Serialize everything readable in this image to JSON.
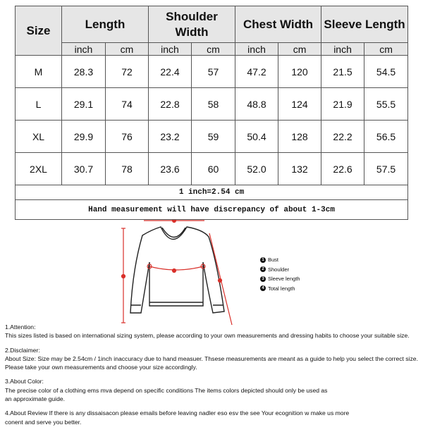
{
  "table": {
    "headers": [
      "Size",
      "Length",
      "Shoulder Width",
      "Chest Width",
      "Sleeve Length"
    ],
    "units": [
      "inch",
      "cm",
      "inch",
      "cm",
      "inch",
      "cm",
      "inch",
      "cm"
    ],
    "rows": [
      {
        "size": "M",
        "values": [
          "28.3",
          "72",
          "22.4",
          "57",
          "47.2",
          "120",
          "21.5",
          "54.5"
        ]
      },
      {
        "size": "L",
        "values": [
          "29.1",
          "74",
          "22.8",
          "58",
          "48.8",
          "124",
          "21.9",
          "55.5"
        ]
      },
      {
        "size": "XL",
        "values": [
          "29.9",
          "76",
          "23.2",
          "59",
          "50.4",
          "128",
          "22.2",
          "56.5"
        ]
      },
      {
        "size": "2XL",
        "values": [
          "30.7",
          "78",
          "23.6",
          "60",
          "52.0",
          "132",
          "22.6",
          "57.5"
        ]
      }
    ],
    "conversion_note": "1 inch=2.54 cm",
    "discrepancy_note": "Hand measurement will have discrepancy of about 1-3cm"
  },
  "diagram": {
    "legend": [
      {
        "num": "1",
        "label": "Bust"
      },
      {
        "num": "2",
        "label": "Shoulder"
      },
      {
        "num": "3",
        "label": "Sleeve length"
      },
      {
        "num": "4",
        "label": "Total length"
      }
    ],
    "measure_color": "#d9302a"
  },
  "notes": [
    {
      "title": "1.Attention:",
      "lines": [
        "This sizes listed is based on international sizing system, please according to your own measurements and dressing habits to choose your suitable size."
      ]
    },
    {
      "title": "2.Disclaimer:",
      "lines": [
        "About Size: Size may be 2.54cm / 1inch inaccuracy due to hand measuer. Thsese measurements are meant as a guide to help you select the correct size.",
        "Please take your own measurements and choose your size accordingly."
      ]
    },
    {
      "title": "3.About Color:",
      "lines": [
        "The precise color of a clothing ems mva depend on specific conditions The items colors depicted should only be used as",
        "an approximate guide."
      ]
    },
    {
      "title": "",
      "lines": [
        "4.About Review If there is any dissaisacon please emails before leaving nadler eso esv the see Your ecognition w make us more",
        "conent and serve you better."
      ]
    }
  ]
}
